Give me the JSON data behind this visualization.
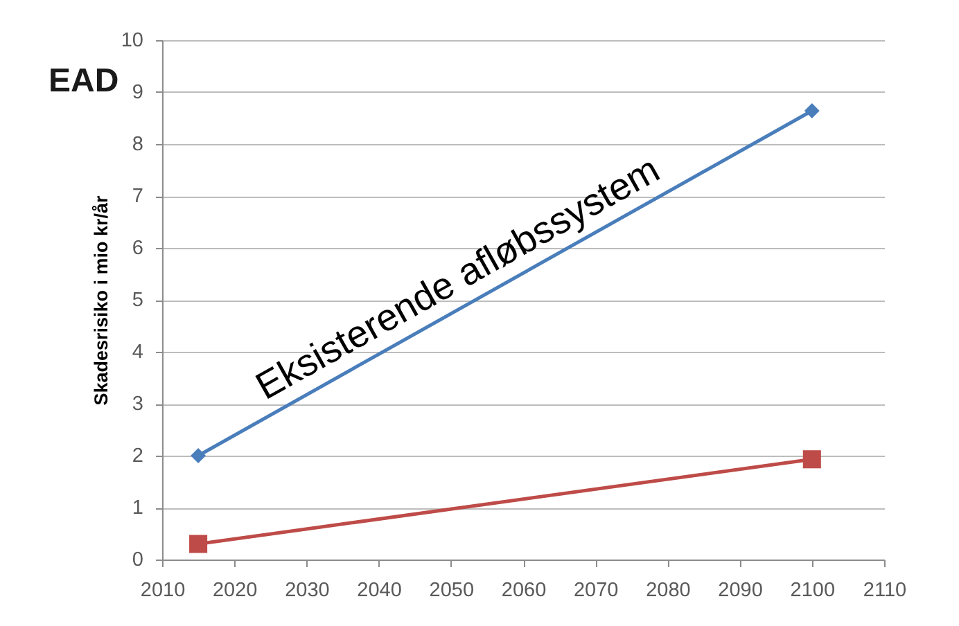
{
  "chart_data": {
    "type": "line",
    "title": "EAD",
    "ylabel": "Skadesrisiko i mio kr/år",
    "x": [
      2015,
      2100
    ],
    "series": [
      {
        "name": "Eksisterende afløbssystem",
        "color": "#4a7ebb",
        "values": [
          2,
          8.64
        ],
        "marker": "diamond"
      },
      {
        "color": "#be4b48",
        "values": [
          0.3,
          1.93
        ],
        "marker": "square"
      }
    ],
    "xlim": [
      2010,
      2110
    ],
    "xticks": [
      2010,
      2020,
      2030,
      2040,
      2050,
      2060,
      2070,
      2080,
      2090,
      2100,
      2110
    ],
    "ylim": [
      0,
      10
    ],
    "yticks": [
      0,
      1,
      2,
      3,
      4,
      5,
      6,
      7,
      8,
      9,
      10
    ],
    "grid": "y"
  }
}
